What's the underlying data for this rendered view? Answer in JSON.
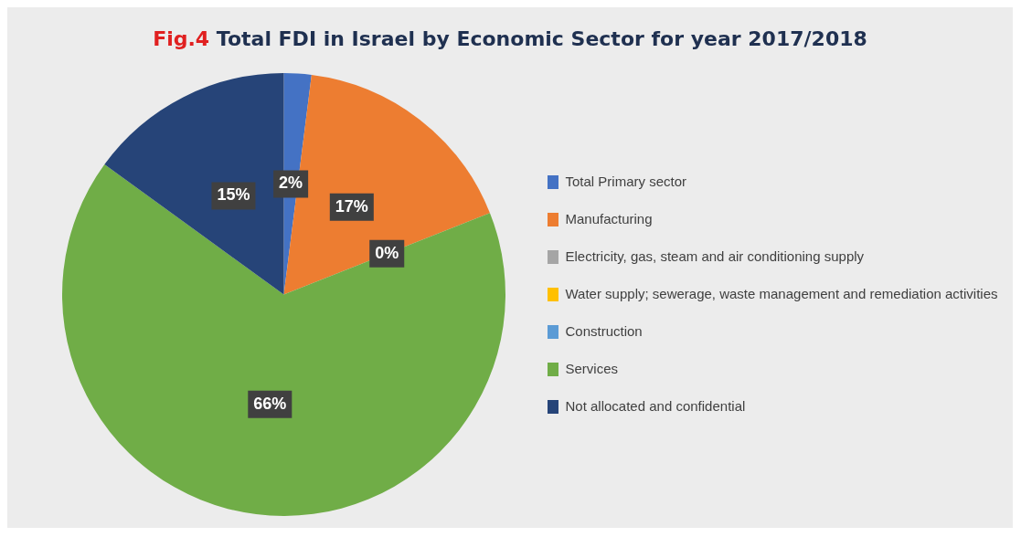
{
  "chart_data": {
    "type": "pie",
    "title": "Fig.4 Total FDI in Israel by Economic Sector for year 2017/2018",
    "categories": [
      "Total Primary sector",
      "Manufacturing",
      "Electricity, gas, steam and air conditioning supply",
      "Water supply; sewerage, waste management and remediation activities",
      "Construction",
      "Services",
      "Not allocated and confidential"
    ],
    "values": [
      2,
      17,
      0,
      0,
      0,
      66,
      15
    ],
    "colors": [
      "#4472c4",
      "#ed7d31",
      "#a5a5a5",
      "#ffc000",
      "#5b9bd5",
      "#70ad47",
      "#264478"
    ],
    "value_labels": [
      "2%",
      "17%",
      "0%",
      null,
      null,
      "66%",
      "15%"
    ],
    "legend": "right"
  }
}
